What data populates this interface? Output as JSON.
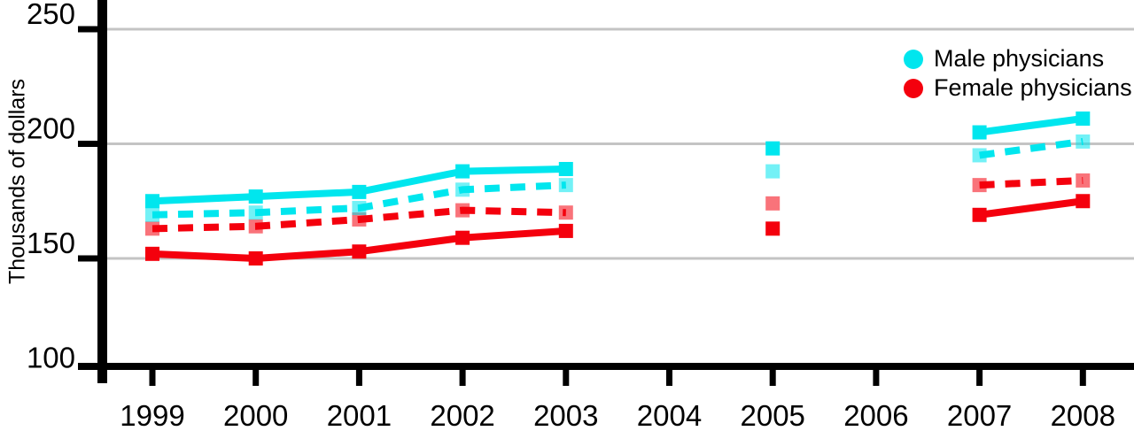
{
  "chart_data": {
    "type": "line",
    "title": "",
    "xlabel": "",
    "ylabel": "Thousands of dollars",
    "x_ticks": [
      {
        "year": 1999,
        "label": "1999"
      },
      {
        "year": 2000,
        "label": "2000"
      },
      {
        "year": 2001,
        "label": "2001"
      },
      {
        "year": 2002,
        "label": "2002"
      },
      {
        "year": 2003,
        "label": "2003"
      },
      {
        "year": 2004,
        "label": "2004"
      },
      {
        "year": 2005,
        "label": "2005"
      },
      {
        "year": 2006,
        "label": "2006"
      },
      {
        "year": 2007,
        "label": "2007"
      },
      {
        "year": 2008,
        "label": "2008"
      }
    ],
    "y_ticks": [
      {
        "value": 250,
        "label": "250"
      },
      {
        "value": 200,
        "label": "200"
      },
      {
        "value": 150,
        "label": "150"
      },
      {
        "value": 100,
        "label": "100"
      }
    ],
    "ylim": [
      100,
      257
    ],
    "xlim": [
      1998.5,
      2008.45
    ],
    "grid": "horizontal",
    "grid_color": "#C4C4C4",
    "axis_color": "#000000",
    "legend_position": "top-right-inside",
    "legend": [
      {
        "label": "Male physicians",
        "color": "#00E6EE"
      },
      {
        "label": "Female physicians",
        "color": "#F4000D"
      }
    ],
    "series": [
      {
        "id": "female-dashed",
        "name": "Female physicians (dashed line)",
        "color": "#F4000D",
        "line_style": "dashed",
        "marker": "square",
        "marker_opacity": 0.55,
        "points": [
          {
            "year": 1999,
            "value": 163
          },
          {
            "year": 2000,
            "value": 164
          },
          {
            "year": 2001,
            "value": 167
          },
          {
            "year": 2002,
            "value": 171
          },
          {
            "year": 2003,
            "value": 170
          },
          {
            "year": 2005,
            "value": 174
          },
          {
            "year": 2007,
            "value": 182
          },
          {
            "year": 2008,
            "value": 184
          }
        ]
      },
      {
        "id": "male-dashed",
        "name": "Male physicians (dashed line)",
        "color": "#00E6EE",
        "line_style": "dashed",
        "marker": "square",
        "marker_opacity": 0.55,
        "points": [
          {
            "year": 1999,
            "value": 169
          },
          {
            "year": 2000,
            "value": 170
          },
          {
            "year": 2001,
            "value": 172
          },
          {
            "year": 2002,
            "value": 180
          },
          {
            "year": 2003,
            "value": 182
          },
          {
            "year": 2005,
            "value": 188
          },
          {
            "year": 2007,
            "value": 195
          },
          {
            "year": 2008,
            "value": 201
          }
        ]
      },
      {
        "id": "female-solid",
        "name": "Female physicians (solid line)",
        "color": "#F4000D",
        "line_style": "solid",
        "marker": "square",
        "marker_opacity": 1,
        "points": [
          {
            "year": 1999,
            "value": 152
          },
          {
            "year": 2000,
            "value": 150
          },
          {
            "year": 2001,
            "value": 153
          },
          {
            "year": 2002,
            "value": 159
          },
          {
            "year": 2003,
            "value": 162
          },
          {
            "year": 2005,
            "value": 163
          },
          {
            "year": 2007,
            "value": 169
          },
          {
            "year": 2008,
            "value": 175
          }
        ]
      },
      {
        "id": "male-solid",
        "name": "Male physicians (solid line)",
        "color": "#00E6EE",
        "line_style": "solid",
        "marker": "square",
        "marker_opacity": 1,
        "points": [
          {
            "year": 1999,
            "value": 175
          },
          {
            "year": 2000,
            "value": 177
          },
          {
            "year": 2001,
            "value": 179
          },
          {
            "year": 2002,
            "value": 188
          },
          {
            "year": 2003,
            "value": 189
          },
          {
            "year": 2005,
            "value": 198
          },
          {
            "year": 2007,
            "value": 205
          },
          {
            "year": 2008,
            "value": 211
          }
        ]
      }
    ]
  }
}
